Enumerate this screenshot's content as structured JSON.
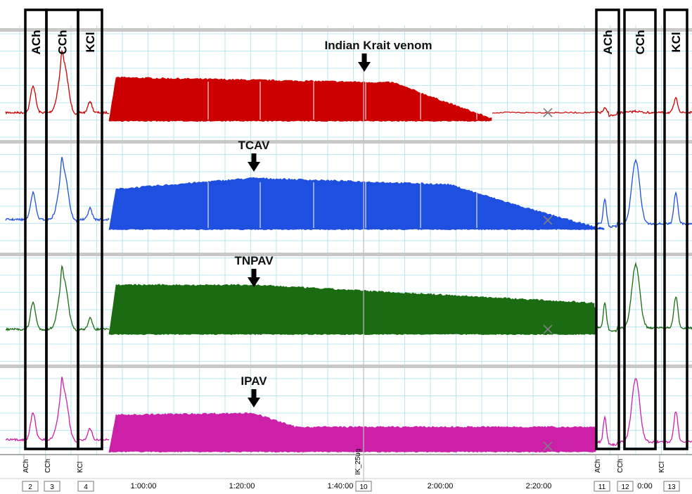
{
  "chart_data": {
    "type": "line",
    "title": "",
    "traces": [
      {
        "name": "",
        "color": "#cc0000",
        "annotation": "Indian Krait venom"
      },
      {
        "name": "",
        "color": "#1f4fe0",
        "annotation": "TCAV"
      },
      {
        "name": "",
        "color": "#1a6b12",
        "annotation": "TNPAV"
      },
      {
        "name": "",
        "color": "#cc20a8",
        "annotation": "IPAV"
      }
    ],
    "x_ticks": [
      "1:00:00",
      "1:20:00",
      "1:40:00",
      "2:00:00",
      "2:20:00",
      "0:00"
    ],
    "comments": [
      "ACh",
      "CCh",
      "KCl",
      "IK_25ug",
      "ACh",
      "CCh",
      "KCl"
    ],
    "markers": [
      "2",
      "3",
      "4",
      "10",
      "11",
      "12",
      "13"
    ],
    "boxes_before": [
      "ACh",
      "CCh",
      "KCl"
    ],
    "boxes_after": [
      "ACh",
      "CCh",
      "KCl"
    ],
    "grid": true,
    "colors": {
      "grid": "#a9e2ec",
      "separator": "#c8c8c8"
    }
  }
}
